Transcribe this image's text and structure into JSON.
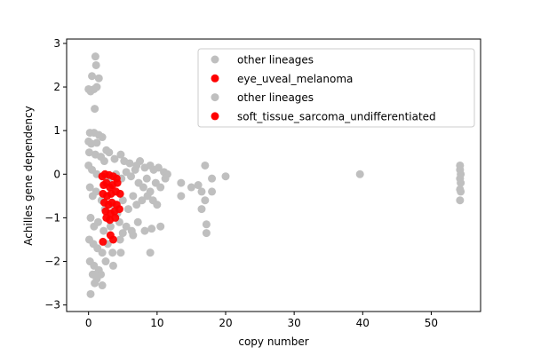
{
  "chart_data": {
    "type": "scatter",
    "xlabel": "copy number",
    "ylabel": "Achilles gene dependency",
    "xlim": [
      -3.2,
      57.2
    ],
    "ylim": [
      -3.15,
      3.1
    ],
    "xticks": [
      0,
      10,
      20,
      30,
      40,
      50
    ],
    "yticks": [
      -3,
      -2,
      -1,
      0,
      1,
      2,
      3
    ],
    "grid": false,
    "legend_position": "upper right",
    "legend": [
      {
        "label": "other lineages",
        "color": "#bfbfbf"
      },
      {
        "label": "eye_uveal_melanoma",
        "color": "#ff0000"
      },
      {
        "label": "other lineages",
        "color": "#bfbfbf"
      },
      {
        "label": "soft_tissue_sarcoma_undifferentiated",
        "color": "#ff0000"
      }
    ],
    "series": [
      {
        "name": "other lineages",
        "color": "#bfbfbf",
        "points": [
          [
            1.0,
            2.7
          ],
          [
            1.1,
            2.5
          ],
          [
            0.5,
            2.25
          ],
          [
            1.5,
            2.2
          ],
          [
            0.0,
            1.95
          ],
          [
            0.3,
            1.9
          ],
          [
            0.8,
            1.95
          ],
          [
            1.2,
            2.0
          ],
          [
            0.9,
            1.5
          ],
          [
            0.2,
            0.95
          ],
          [
            0.8,
            0.95
          ],
          [
            1.5,
            0.9
          ],
          [
            2.0,
            0.85
          ],
          [
            0.0,
            0.75
          ],
          [
            0.4,
            0.7
          ],
          [
            1.2,
            0.72
          ],
          [
            2.6,
            0.55
          ],
          [
            3.0,
            0.5
          ],
          [
            0.1,
            0.5
          ],
          [
            1.0,
            0.45
          ],
          [
            1.8,
            0.4
          ],
          [
            2.3,
            0.3
          ],
          [
            3.8,
            0.35
          ],
          [
            4.7,
            0.45
          ],
          [
            5.2,
            0.3
          ],
          [
            6.0,
            0.25
          ],
          [
            7.0,
            0.2
          ],
          [
            7.5,
            0.3
          ],
          [
            8.2,
            0.15
          ],
          [
            9.0,
            0.2
          ],
          [
            9.5,
            0.1
          ],
          [
            10.2,
            0.15
          ],
          [
            11.0,
            0.05
          ],
          [
            11.5,
            0.0
          ],
          [
            0.0,
            0.2
          ],
          [
            0.5,
            0.1
          ],
          [
            1.2,
            0.0
          ],
          [
            2.0,
            -0.05
          ],
          [
            3.0,
            -0.1
          ],
          [
            4.0,
            0.0
          ],
          [
            4.8,
            -0.1
          ],
          [
            5.5,
            0.05
          ],
          [
            6.2,
            -0.05
          ],
          [
            6.8,
            0.1
          ],
          [
            7.3,
            -0.2
          ],
          [
            8.0,
            -0.3
          ],
          [
            8.5,
            -0.1
          ],
          [
            9.0,
            -0.4
          ],
          [
            9.8,
            -0.2
          ],
          [
            10.5,
            -0.3
          ],
          [
            11.2,
            -0.1
          ],
          [
            0.2,
            -0.3
          ],
          [
            0.6,
            -0.5
          ],
          [
            1.1,
            -0.4
          ],
          [
            1.9,
            -0.6
          ],
          [
            2.4,
            -0.8
          ],
          [
            3.5,
            -0.7
          ],
          [
            4.2,
            -0.9
          ],
          [
            5.0,
            -0.6
          ],
          [
            5.8,
            -0.8
          ],
          [
            6.5,
            -0.5
          ],
          [
            7.0,
            -0.7
          ],
          [
            7.8,
            -0.6
          ],
          [
            8.6,
            -0.5
          ],
          [
            9.4,
            -0.6
          ],
          [
            10.0,
            -0.7
          ],
          [
            0.3,
            -1.0
          ],
          [
            0.8,
            -1.2
          ],
          [
            1.4,
            -1.1
          ],
          [
            2.2,
            -1.3
          ],
          [
            3.2,
            -1.2
          ],
          [
            4.5,
            -1.1
          ],
          [
            5.5,
            -1.2
          ],
          [
            6.3,
            -1.3
          ],
          [
            7.2,
            -1.1
          ],
          [
            0.1,
            -1.5
          ],
          [
            0.7,
            -1.6
          ],
          [
            1.3,
            -1.7
          ],
          [
            2.0,
            -1.8
          ],
          [
            2.8,
            -1.6
          ],
          [
            3.5,
            -1.8
          ],
          [
            4.6,
            -1.5
          ],
          [
            5.0,
            -1.35
          ],
          [
            6.5,
            -1.4
          ],
          [
            8.2,
            -1.3
          ],
          [
            9.2,
            -1.25
          ],
          [
            9.0,
            -1.8
          ],
          [
            10.5,
            -1.2
          ],
          [
            4.7,
            -1.8
          ],
          [
            0.2,
            -2.0
          ],
          [
            0.8,
            -2.1
          ],
          [
            1.5,
            -2.2
          ],
          [
            2.5,
            -2.0
          ],
          [
            3.6,
            -2.1
          ],
          [
            0.6,
            -2.3
          ],
          [
            1.2,
            -2.4
          ],
          [
            2.0,
            -2.55
          ],
          [
            0.9,
            -2.5
          ],
          [
            0.3,
            -2.75
          ],
          [
            1.0,
            -2.3
          ],
          [
            1.8,
            -2.3
          ],
          [
            13.5,
            -0.2
          ],
          [
            13.5,
            -0.5
          ],
          [
            15.0,
            -0.3
          ],
          [
            16.0,
            -0.25
          ],
          [
            16.5,
            -0.4
          ],
          [
            16.5,
            -0.8
          ],
          [
            17.0,
            0.2
          ],
          [
            17.0,
            -0.6
          ],
          [
            17.2,
            -1.15
          ],
          [
            17.2,
            -1.35
          ],
          [
            18.0,
            -0.1
          ],
          [
            18.0,
            -0.4
          ],
          [
            20.0,
            -0.05
          ],
          [
            39.6,
            0.0
          ],
          [
            54.2,
            0.2
          ],
          [
            54.2,
            0.1
          ],
          [
            54.3,
            0.0
          ],
          [
            54.2,
            -0.1
          ],
          [
            54.3,
            -0.2
          ],
          [
            54.2,
            -0.35
          ],
          [
            54.3,
            -0.4
          ],
          [
            54.2,
            -0.6
          ]
        ]
      },
      {
        "name": "eye_uveal_melanoma",
        "color": "#ff0000",
        "points": [
          [
            2.0,
            -0.05
          ],
          [
            2.4,
            0.0
          ],
          [
            3.0,
            -0.02
          ],
          [
            3.6,
            -0.05
          ],
          [
            4.1,
            -0.1
          ],
          [
            2.2,
            -0.25
          ],
          [
            2.6,
            -0.2
          ],
          [
            3.1,
            -0.3
          ],
          [
            3.5,
            -0.25
          ],
          [
            4.2,
            -0.2
          ],
          [
            2.1,
            -0.45
          ],
          [
            2.7,
            -0.5
          ],
          [
            3.3,
            -0.45
          ],
          [
            4.0,
            -0.4
          ],
          [
            4.6,
            -0.45
          ],
          [
            2.3,
            -0.65
          ],
          [
            2.9,
            -0.7
          ],
          [
            3.4,
            -0.65
          ],
          [
            4.1,
            -0.7
          ],
          [
            2.5,
            -0.85
          ],
          [
            3.2,
            -0.9
          ],
          [
            3.8,
            -0.85
          ],
          [
            4.5,
            -0.8
          ],
          [
            2.6,
            -1.0
          ],
          [
            3.9,
            -1.0
          ],
          [
            3.1,
            -1.05
          ]
        ]
      },
      {
        "name": "soft_tissue_sarcoma_undifferentiated",
        "color": "#ff0000",
        "points": [
          [
            2.1,
            -1.55
          ],
          [
            3.2,
            -1.4
          ],
          [
            3.6,
            -1.5
          ]
        ]
      }
    ]
  }
}
